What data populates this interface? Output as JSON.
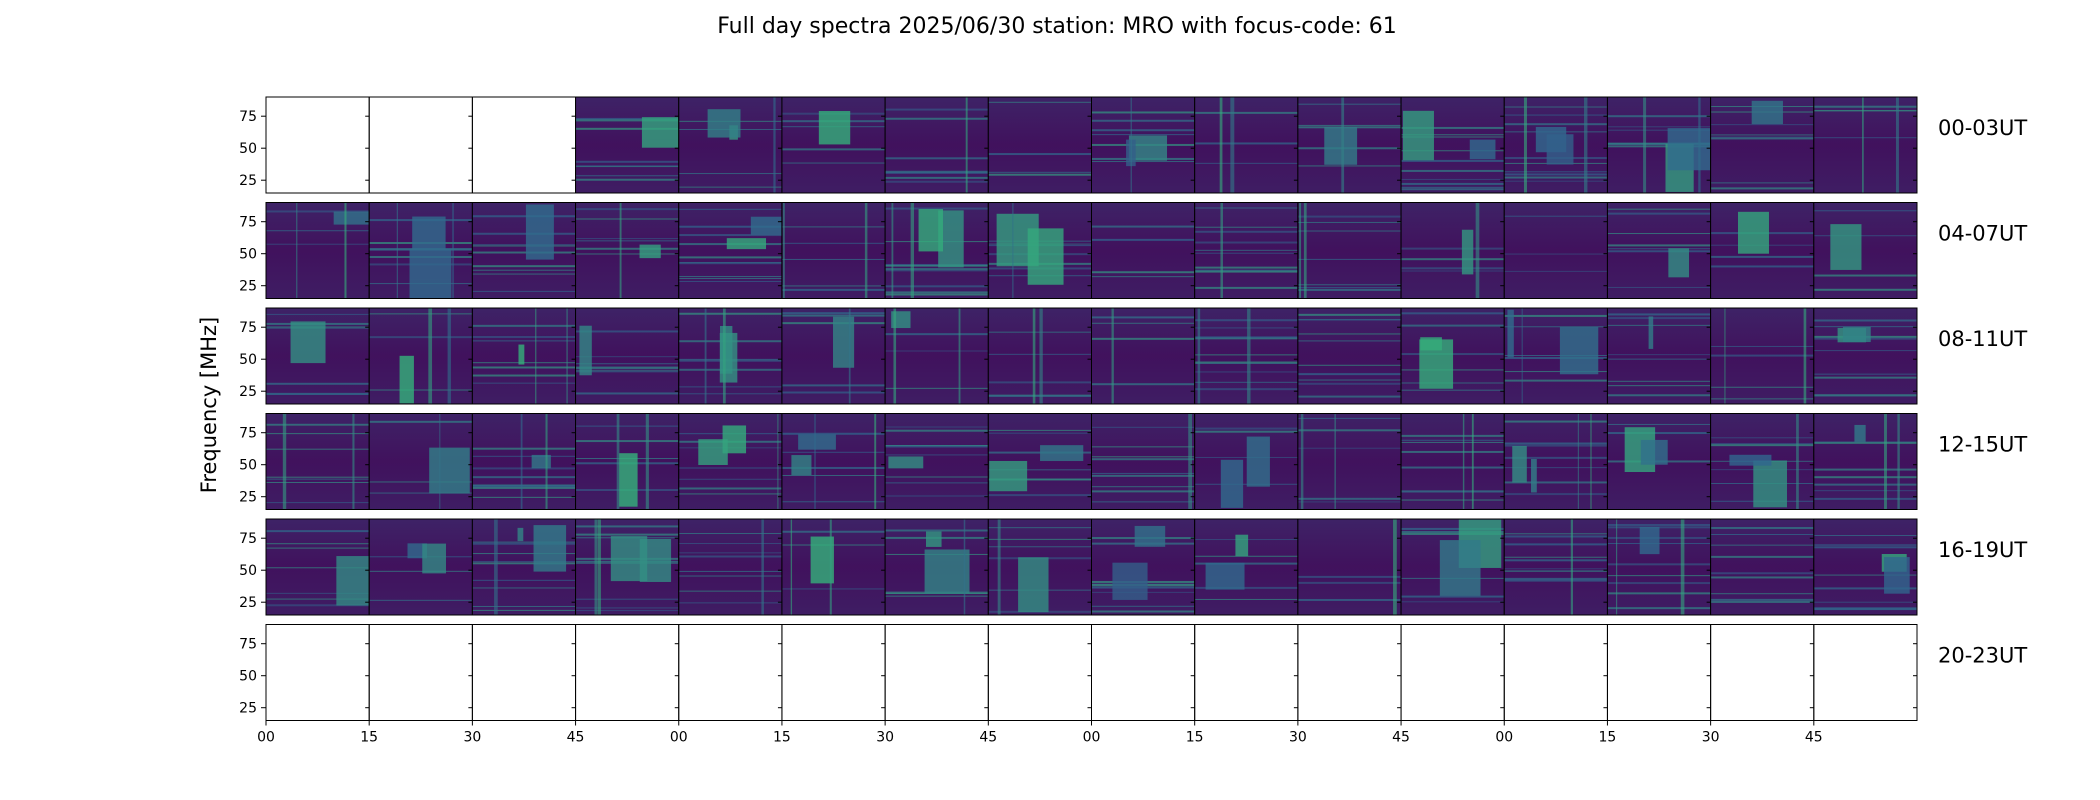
{
  "chart_data": {
    "type": "heatmap",
    "title": "Full day spectra 2025/06/30 station: MRO with focus-code: 61",
    "ylabel": "Frequency [MHz]",
    "xlabel": "",
    "y_ticks": [
      "75",
      "50",
      "25"
    ],
    "y_tick_values": [
      75,
      50,
      25
    ],
    "ylim": [
      15,
      90
    ],
    "x_ticks": [
      "00",
      "15",
      "30",
      "45",
      "00",
      "15",
      "30",
      "45",
      "00",
      "15",
      "30",
      "45",
      "00",
      "15",
      "30",
      "45"
    ],
    "minutes_per_panel": 15,
    "panels_per_row": 16,
    "colormap": "viridis",
    "colormap_stops": [
      "#440154",
      "#31688e",
      "#35b779",
      "#fde725"
    ],
    "rows": [
      {
        "label": "00-03UT",
        "empty_panels": [
          0,
          1,
          2
        ]
      },
      {
        "label": "04-07UT",
        "empty_panels": []
      },
      {
        "label": "08-11UT",
        "empty_panels": []
      },
      {
        "label": "12-15UT",
        "empty_panels": []
      },
      {
        "label": "16-19UT",
        "empty_panels": []
      },
      {
        "label": "20-23UT",
        "empty_panels": [
          0,
          1,
          2,
          3,
          4,
          5,
          6,
          7,
          8,
          9,
          10,
          11,
          12,
          13,
          14,
          15
        ]
      }
    ]
  }
}
